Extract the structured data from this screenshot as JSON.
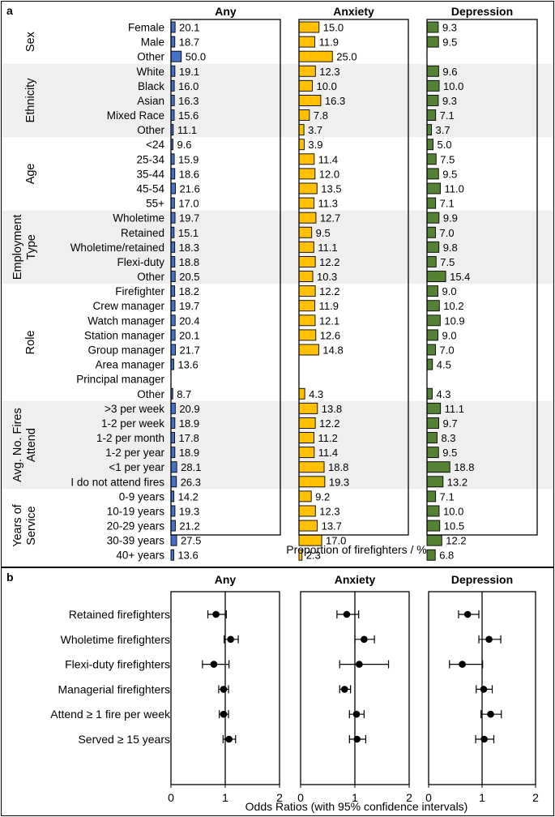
{
  "colors": {
    "any": "#4472C4",
    "anxiety": "#FFC000",
    "depression": "#548235",
    "band": "#EFEFEF"
  },
  "panel_a": {
    "label": "a",
    "columns": [
      "Any",
      "Anxiety",
      "Depression"
    ],
    "xlabel": "Proportion of firefighters / %",
    "groups": [
      {
        "name": "Sex",
        "lines": [
          "Sex"
        ],
        "shaded": false,
        "rows": [
          {
            "label": "Female",
            "any": 20.1,
            "anxiety": 15.0,
            "depression": 9.3
          },
          {
            "label": "Male",
            "any": 18.7,
            "anxiety": 11.9,
            "depression": 9.5
          },
          {
            "label": "Other",
            "any": 50.0,
            "anxiety": 25.0,
            "depression": null
          }
        ]
      },
      {
        "name": "Ethnicity",
        "lines": [
          "Ethnicity"
        ],
        "shaded": true,
        "rows": [
          {
            "label": "White",
            "any": 19.1,
            "anxiety": 12.3,
            "depression": 9.6
          },
          {
            "label": "Black",
            "any": 16.0,
            "anxiety": 10.0,
            "depression": 10.0
          },
          {
            "label": "Asian",
            "any": 16.3,
            "anxiety": 16.3,
            "depression": 9.3
          },
          {
            "label": "Mixed Race",
            "any": 15.6,
            "anxiety": 7.8,
            "depression": 7.1
          },
          {
            "label": "Other",
            "any": 11.1,
            "anxiety": 3.7,
            "depression": 3.7
          }
        ]
      },
      {
        "name": "Age",
        "lines": [
          "Age"
        ],
        "shaded": false,
        "rows": [
          {
            "label": "<24",
            "any": 9.6,
            "anxiety": 3.9,
            "depression": 5.0
          },
          {
            "label": "25-34",
            "any": 15.9,
            "anxiety": 11.4,
            "depression": 7.5
          },
          {
            "label": "35-44",
            "any": 18.6,
            "anxiety": 12.0,
            "depression": 9.5
          },
          {
            "label": "45-54",
            "any": 21.6,
            "anxiety": 13.5,
            "depression": 11.0
          },
          {
            "label": "55+",
            "any": 17.0,
            "anxiety": 11.3,
            "depression": 7.1
          }
        ]
      },
      {
        "name": "Employment Type",
        "lines": [
          "Employment",
          "Type"
        ],
        "shaded": true,
        "rows": [
          {
            "label": "Wholetime",
            "any": 19.7,
            "anxiety": 12.7,
            "depression": 9.9
          },
          {
            "label": "Retained",
            "any": 15.1,
            "anxiety": 9.5,
            "depression": 7.0
          },
          {
            "label": "Wholetime/retained",
            "any": 18.3,
            "anxiety": 11.1,
            "depression": 9.8
          },
          {
            "label": "Flexi-duty",
            "any": 18.8,
            "anxiety": 12.2,
            "depression": 7.5
          },
          {
            "label": "Other",
            "any": 20.5,
            "anxiety": 10.3,
            "depression": 15.4
          }
        ]
      },
      {
        "name": "Role",
        "lines": [
          "Role"
        ],
        "shaded": false,
        "rows": [
          {
            "label": "Firefighter",
            "any": 18.2,
            "anxiety": 12.2,
            "depression": 9.0
          },
          {
            "label": "Crew manager",
            "any": 19.7,
            "anxiety": 11.9,
            "depression": 10.2
          },
          {
            "label": "Watch manager",
            "any": 20.4,
            "anxiety": 12.1,
            "depression": 10.9
          },
          {
            "label": "Station manager",
            "any": 20.1,
            "anxiety": 12.6,
            "depression": 9.0
          },
          {
            "label": "Group manager",
            "any": 21.7,
            "anxiety": 14.8,
            "depression": 7.0
          },
          {
            "label": "Area manager",
            "any": 13.6,
            "anxiety": null,
            "depression": 4.5
          },
          {
            "label": "Principal manager",
            "any": null,
            "anxiety": null,
            "depression": null
          },
          {
            "label": "Other",
            "any": 8.7,
            "anxiety": 4.3,
            "depression": 4.3
          }
        ]
      },
      {
        "name": "Avg. No. Fires Attend",
        "lines": [
          "Avg. No. Fires",
          "Attend"
        ],
        "shaded": true,
        "rows": [
          {
            "label": ">3 per week",
            "any": 20.9,
            "anxiety": 13.8,
            "depression": 11.1
          },
          {
            "label": "1-2 per week",
            "any": 18.9,
            "anxiety": 12.2,
            "depression": 9.7
          },
          {
            "label": "1-2 per month",
            "any": 17.8,
            "anxiety": 11.2,
            "depression": 8.3
          },
          {
            "label": "1-2 per year",
            "any": 18.9,
            "anxiety": 11.4,
            "depression": 9.5
          },
          {
            "label": "<1 per year",
            "any": 28.1,
            "anxiety": 18.8,
            "depression": 18.8
          },
          {
            "label": "I do not attend fires",
            "any": 26.3,
            "anxiety": 19.3,
            "depression": 13.2
          }
        ]
      },
      {
        "name": "Years of Service",
        "lines": [
          "Years of",
          "Service"
        ],
        "shaded": false,
        "rows": [
          {
            "label": "0-9 years",
            "any": 14.2,
            "anxiety": 9.2,
            "depression": 7.1
          },
          {
            "label": "10-19 years",
            "any": 19.3,
            "anxiety": 12.3,
            "depression": 10.0
          },
          {
            "label": "20-29 years",
            "any": 21.2,
            "anxiety": 13.7,
            "depression": 10.5
          },
          {
            "label": "30-39 years",
            "any": 27.5,
            "anxiety": 17.0,
            "depression": 12.2
          },
          {
            "label": "40+ years",
            "any": 13.6,
            "anxiety": 2.3,
            "depression": 6.8
          }
        ]
      }
    ]
  },
  "panel_b": {
    "label": "b",
    "columns": [
      "Any",
      "Anxiety",
      "Depression"
    ],
    "xlabel": "Odds Ratios (with 95% confidence intervals)",
    "xlim": [
      0,
      2
    ],
    "xticks": [
      0,
      1,
      2
    ],
    "reference": 1,
    "rows": [
      "Retained firefighters",
      "Wholetime firefighters",
      "Flexi-duty firefighters",
      "Managerial firefighters",
      "Attend ≥ 1 fire per week",
      "Served ≥ 15 years"
    ],
    "estimates": {
      "any": [
        {
          "or": 0.83,
          "lo": 0.68,
          "hi": 1.02
        },
        {
          "or": 1.1,
          "lo": 0.98,
          "hi": 1.24
        },
        {
          "or": 0.79,
          "lo": 0.58,
          "hi": 1.07
        },
        {
          "or": 0.97,
          "lo": 0.88,
          "hi": 1.06
        },
        {
          "or": 0.97,
          "lo": 0.89,
          "hi": 1.06
        },
        {
          "or": 1.07,
          "lo": 0.96,
          "hi": 1.19
        }
      ],
      "anxiety": [
        {
          "or": 0.85,
          "lo": 0.67,
          "hi": 1.07
        },
        {
          "or": 1.17,
          "lo": 1.0,
          "hi": 1.36
        },
        {
          "or": 1.08,
          "lo": 0.72,
          "hi": 1.62
        },
        {
          "or": 0.81,
          "lo": 0.72,
          "hi": 0.92
        },
        {
          "or": 1.03,
          "lo": 0.9,
          "hi": 1.17
        },
        {
          "or": 1.04,
          "lo": 0.9,
          "hi": 1.2
        }
      ],
      "depression": [
        {
          "or": 0.73,
          "lo": 0.56,
          "hi": 0.94
        },
        {
          "or": 1.13,
          "lo": 0.94,
          "hi": 1.35
        },
        {
          "or": 0.63,
          "lo": 0.39,
          "hi": 1.01
        },
        {
          "or": 1.03,
          "lo": 0.89,
          "hi": 1.19
        },
        {
          "or": 1.16,
          "lo": 0.98,
          "hi": 1.36
        },
        {
          "or": 1.04,
          "lo": 0.88,
          "hi": 1.22
        }
      ]
    }
  }
}
